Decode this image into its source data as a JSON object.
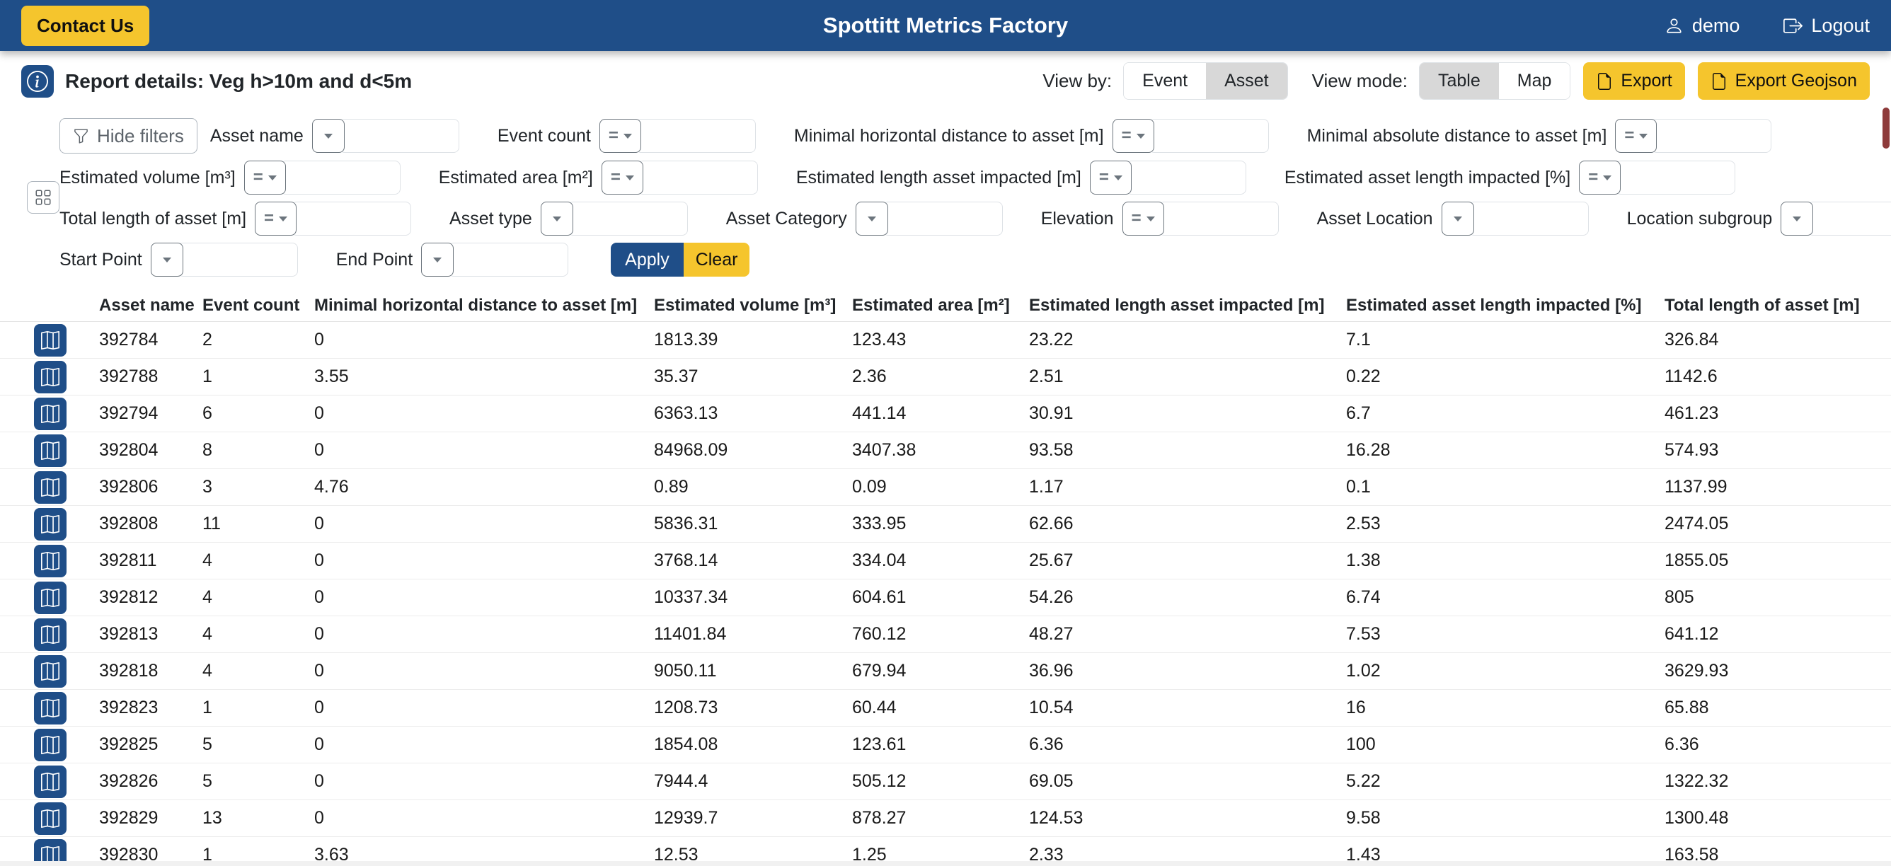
{
  "colors": {
    "navbar_bg": "#1f4e88",
    "accent_yellow": "#f5c52d",
    "toggle_selected_bg": "#d8d8d8",
    "scrollbar_thumb": "#8e3b3b"
  },
  "icons": {
    "navbar_user": "person-icon",
    "navbar_logout": "box-arrow-right-icon",
    "report_info": "info-circle-icon",
    "export_file": "file-icon",
    "filters_hide": "funnel-icon",
    "filters_columns": "grid-icon",
    "row_action": "map-icon",
    "operator": "caret-down-icon"
  },
  "navbar": {
    "contact_label": "Contact Us",
    "title": "Spottitt Metrics Factory",
    "user": "demo",
    "logout_label": "Logout"
  },
  "report": {
    "title": "Report details: Veg h>10m and d<5m",
    "view_by_label": "View by:",
    "view_by_options": [
      "Event",
      "Asset"
    ],
    "view_by_selected": "Asset",
    "view_mode_label": "View mode:",
    "view_mode_options": [
      "Table",
      "Map"
    ],
    "view_mode_selected": "Table",
    "export_label": "Export",
    "export_geojson_label": "Export Geojson"
  },
  "filters": {
    "hide_filters_label": "Hide filters",
    "apply_label": "Apply",
    "clear_label": "Clear",
    "input_value": "",
    "rows": [
      [
        {
          "label": "Asset name",
          "operator": ""
        },
        {
          "label": "Event count",
          "operator": "="
        },
        {
          "label": "Minimal horizontal distance to asset [m]",
          "operator": "="
        },
        {
          "label": "Minimal absolute distance to asset [m]",
          "operator": "="
        }
      ],
      [
        {
          "label": "Estimated volume [m³]",
          "operator": "="
        },
        {
          "label": "Estimated area [m²]",
          "operator": "="
        },
        {
          "label": "Estimated length asset impacted [m]",
          "operator": "="
        },
        {
          "label": "Estimated asset length impacted [%]",
          "operator": "="
        }
      ],
      [
        {
          "label": "Total length of asset [m]",
          "operator": "="
        },
        {
          "label": "Asset type",
          "operator": ""
        },
        {
          "label": "Asset Category",
          "operator": ""
        },
        {
          "label": "Elevation",
          "operator": "="
        },
        {
          "label": "Asset Location",
          "operator": ""
        },
        {
          "label": "Location subgroup",
          "operator": ""
        }
      ],
      [
        {
          "label": "Start Point",
          "operator": ""
        },
        {
          "label": "End Point",
          "operator": ""
        }
      ]
    ]
  },
  "table": {
    "columns": [
      "Asset name",
      "Event count",
      "Minimal horizontal distance to asset [m]",
      "Estimated volume [m³]",
      "Estimated area [m²]",
      "Estimated length asset impacted [m]",
      "Estimated asset length impacted [%]",
      "Total length of asset [m]"
    ],
    "rows": [
      [
        "392784",
        "2",
        "0",
        "1813.39",
        "123.43",
        "23.22",
        "7.1",
        "326.84"
      ],
      [
        "392788",
        "1",
        "3.55",
        "35.37",
        "2.36",
        "2.51",
        "0.22",
        "1142.6"
      ],
      [
        "392794",
        "6",
        "0",
        "6363.13",
        "441.14",
        "30.91",
        "6.7",
        "461.23"
      ],
      [
        "392804",
        "8",
        "0",
        "84968.09",
        "3407.38",
        "93.58",
        "16.28",
        "574.93"
      ],
      [
        "392806",
        "3",
        "4.76",
        "0.89",
        "0.09",
        "1.17",
        "0.1",
        "1137.99"
      ],
      [
        "392808",
        "11",
        "0",
        "5836.31",
        "333.95",
        "62.66",
        "2.53",
        "2474.05"
      ],
      [
        "392811",
        "4",
        "0",
        "3768.14",
        "334.04",
        "25.67",
        "1.38",
        "1855.05"
      ],
      [
        "392812",
        "4",
        "0",
        "10337.34",
        "604.61",
        "54.26",
        "6.74",
        "805"
      ],
      [
        "392813",
        "4",
        "0",
        "11401.84",
        "760.12",
        "48.27",
        "7.53",
        "641.12"
      ],
      [
        "392818",
        "4",
        "0",
        "9050.11",
        "679.94",
        "36.96",
        "1.02",
        "3629.93"
      ],
      [
        "392823",
        "1",
        "0",
        "1208.73",
        "60.44",
        "10.54",
        "16",
        "65.88"
      ],
      [
        "392825",
        "5",
        "0",
        "1854.08",
        "123.61",
        "6.36",
        "100",
        "6.36"
      ],
      [
        "392826",
        "5",
        "0",
        "7944.4",
        "505.12",
        "69.05",
        "5.22",
        "1322.32"
      ],
      [
        "392829",
        "13",
        "0",
        "12939.7",
        "878.27",
        "124.53",
        "9.58",
        "1300.48"
      ],
      [
        "392830",
        "1",
        "3.63",
        "12.53",
        "1.25",
        "2.33",
        "1.43",
        "163.58"
      ]
    ]
  }
}
